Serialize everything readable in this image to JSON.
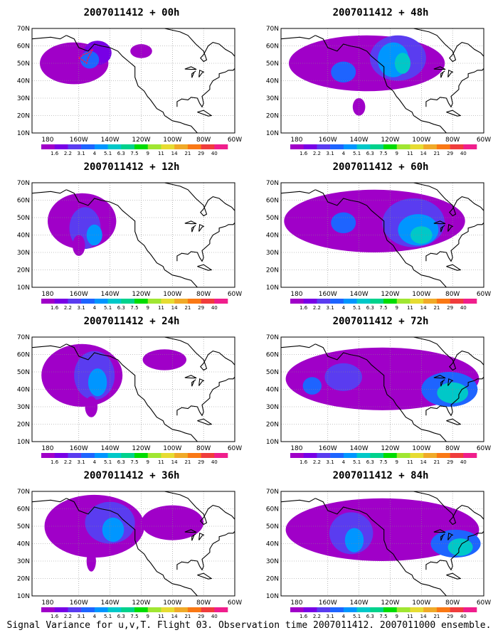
{
  "caption": "Signal Variance for u,v,T. Flight 03. Observation time 2007011412. 2007011000 ensemble.",
  "map": {
    "lat_labels": [
      "70N",
      "60N",
      "50N",
      "40N",
      "30N",
      "20N",
      "10N"
    ],
    "lon_labels": [
      "180",
      "160W",
      "140W",
      "120W",
      "100W",
      "80W",
      "60W"
    ],
    "extent": {
      "lon_min": -190,
      "lon_max": -60,
      "lat_min": 10,
      "lat_max": 70
    }
  },
  "legend": {
    "levels": [
      "1.6",
      "2.2",
      "3.1",
      "4",
      "5.1",
      "6.3",
      "7.5",
      "9",
      "11",
      "14",
      "21",
      "29",
      "40"
    ],
    "colors": [
      "#a000c8",
      "#7800e6",
      "#5a3cf0",
      "#1e64ff",
      "#0096ff",
      "#00c8c8",
      "#00d28c",
      "#00dc00",
      "#a0e632",
      "#e6dc32",
      "#f0aa28",
      "#fa7814",
      "#f03c3c",
      "#f01e8c"
    ]
  },
  "panels": [
    {
      "title": "2007011412 + 00h",
      "col": 0,
      "row": 0
    },
    {
      "title": "2007011412 + 12h",
      "col": 0,
      "row": 1
    },
    {
      "title": "2007011412 + 24h",
      "col": 0,
      "row": 2
    },
    {
      "title": "2007011412 + 36h",
      "col": 0,
      "row": 3
    },
    {
      "title": "2007011412 + 48h",
      "col": 1,
      "row": 0
    },
    {
      "title": "2007011412 + 60h",
      "col": 1,
      "row": 1
    },
    {
      "title": "2007011412 + 72h",
      "col": 1,
      "row": 2
    },
    {
      "title": "2007011412 + 84h",
      "col": 1,
      "row": 3
    }
  ]
}
